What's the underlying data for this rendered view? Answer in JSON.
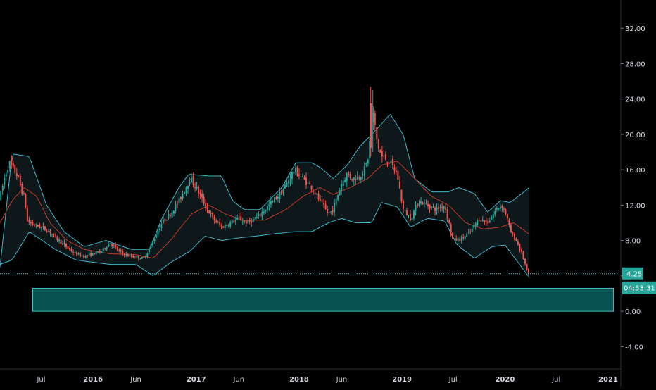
{
  "colors": {
    "background": "#000000",
    "up": "#26a69a",
    "down": "#ef5350",
    "band": "#3fb6c6",
    "basis": "#c0392b",
    "zone_fill": "#0c5f5f",
    "zone_border": "#3fc1c1",
    "price_line": "#3fc1c1",
    "price_tag_bg": "#26a69a",
    "axis_text": "#d1d4dc"
  },
  "price_tag": "4.25",
  "countdown": "04:53:31",
  "chart_data": {
    "type": "candlestick",
    "y_axis": {
      "ticks": [
        "-4.00",
        "0.00",
        "4.00",
        "8.00",
        "12.00",
        "16.00",
        "20.00",
        "24.00",
        "28.00",
        "32.00"
      ],
      "ylim": [
        -6.2,
        35.2
      ]
    },
    "x_axis": {
      "ticks": [
        "Jul",
        "2016",
        "Jun",
        "2017",
        "Jun",
        "2018",
        "Jun",
        "2019",
        "Jul",
        "2020",
        "Jul",
        "2021"
      ],
      "range": [
        "2015-02-05",
        "2021-02-15"
      ]
    },
    "overlays": [
      "bollinger_upper",
      "bollinger_basis",
      "bollinger_lower"
    ],
    "last_price": 4.25,
    "zone": {
      "x_start": "2015-06-01",
      "x_end": "2021-01-20",
      "y_low": 0.0,
      "y_high": 2.6
    },
    "price_path": [
      [
        "2015-02-05",
        12.8
      ],
      [
        "2015-02-20",
        15.0
      ],
      [
        "2015-03-10",
        16.8
      ],
      [
        "2015-03-25",
        16.0
      ],
      [
        "2015-04-10",
        15.2
      ],
      [
        "2015-04-20",
        14.0
      ],
      [
        "2015-05-05",
        12.5
      ],
      [
        "2015-05-12",
        10.2
      ],
      [
        "2015-06-01",
        9.8
      ],
      [
        "2015-07-01",
        9.5
      ],
      [
        "2015-08-01",
        9.0
      ],
      [
        "2015-09-01",
        8.0
      ],
      [
        "2015-10-01",
        7.2
      ],
      [
        "2015-11-01",
        6.5
      ],
      [
        "2015-12-01",
        6.2
      ],
      [
        "2016-01-01",
        6.5
      ],
      [
        "2016-02-01",
        6.8
      ],
      [
        "2016-03-01",
        7.8
      ],
      [
        "2016-04-01",
        6.8
      ],
      [
        "2016-05-01",
        6.3
      ],
      [
        "2016-06-01",
        6.1
      ],
      [
        "2016-07-01",
        6.0
      ],
      [
        "2016-08-01",
        8.0
      ],
      [
        "2016-09-01",
        10.0
      ],
      [
        "2016-10-01",
        11.0
      ],
      [
        "2016-11-01",
        12.5
      ],
      [
        "2016-12-10",
        15.0
      ],
      [
        "2017-01-01",
        14.0
      ],
      [
        "2017-02-01",
        12.0
      ],
      [
        "2017-03-01",
        10.5
      ],
      [
        "2017-04-01",
        9.5
      ],
      [
        "2017-05-01",
        10.0
      ],
      [
        "2017-06-01",
        10.5
      ],
      [
        "2017-07-01",
        10.0
      ],
      [
        "2017-08-01",
        10.5
      ],
      [
        "2017-09-01",
        11.5
      ],
      [
        "2017-10-01",
        12.5
      ],
      [
        "2017-11-01",
        13.5
      ],
      [
        "2017-12-15",
        16.0
      ],
      [
        "2018-01-15",
        15.0
      ],
      [
        "2018-02-15",
        14.0
      ],
      [
        "2018-03-15",
        12.5
      ],
      [
        "2018-04-15",
        11.0
      ],
      [
        "2018-05-01",
        11.5
      ],
      [
        "2018-06-01",
        14.5
      ],
      [
        "2018-06-20",
        15.5
      ],
      [
        "2018-07-10",
        15.0
      ],
      [
        "2018-08-01",
        15.2
      ],
      [
        "2018-08-20",
        16.0
      ],
      [
        "2018-09-01",
        17.0
      ],
      [
        "2018-09-20",
        22.5
      ],
      [
        "2018-10-05",
        19.0
      ],
      [
        "2018-10-20",
        17.5
      ],
      [
        "2018-11-15",
        17.0
      ],
      [
        "2018-12-15",
        15.5
      ],
      [
        "2019-01-05",
        11.5
      ],
      [
        "2019-02-01",
        10.5
      ],
      [
        "2019-03-01",
        12.5
      ],
      [
        "2019-04-01",
        12.0
      ],
      [
        "2019-05-01",
        11.5
      ],
      [
        "2019-06-01",
        12.0
      ],
      [
        "2019-07-01",
        8.0
      ],
      [
        "2019-08-01",
        8.2
      ],
      [
        "2019-09-01",
        9.0
      ],
      [
        "2019-10-01",
        10.5
      ],
      [
        "2019-11-01",
        10.0
      ],
      [
        "2019-12-01",
        11.5
      ],
      [
        "2019-12-20",
        12.0
      ],
      [
        "2020-01-05",
        11.0
      ],
      [
        "2020-01-20",
        9.0
      ],
      [
        "2020-02-10",
        8.0
      ],
      [
        "2020-03-01",
        6.5
      ],
      [
        "2020-03-20",
        4.5
      ],
      [
        "2020-03-28",
        4.25
      ]
    ],
    "upper_band_path": [
      [
        "2015-02-05",
        5.0
      ],
      [
        "2015-03-20",
        17.8
      ],
      [
        "2015-05-20",
        17.5
      ],
      [
        "2015-07-20",
        12.0
      ],
      [
        "2015-09-20",
        9.0
      ],
      [
        "2015-12-01",
        7.3
      ],
      [
        "2016-02-15",
        8.0
      ],
      [
        "2016-05-15",
        7.0
      ],
      [
        "2016-07-20",
        7.0
      ],
      [
        "2016-09-01",
        10.5
      ],
      [
        "2016-11-01",
        14.0
      ],
      [
        "2016-12-05",
        15.5
      ],
      [
        "2017-02-15",
        15.3
      ],
      [
        "2017-04-01",
        15.3
      ],
      [
        "2017-05-10",
        12.5
      ],
      [
        "2017-06-20",
        11.5
      ],
      [
        "2017-08-15",
        11.5
      ],
      [
        "2017-11-01",
        14.0
      ],
      [
        "2017-12-20",
        16.8
      ],
      [
        "2018-02-15",
        16.8
      ],
      [
        "2018-03-20",
        16.2
      ],
      [
        "2018-05-01",
        15.0
      ],
      [
        "2018-06-20",
        16.5
      ],
      [
        "2018-08-01",
        18.5
      ],
      [
        "2018-09-15",
        20.0
      ],
      [
        "2018-10-15",
        21.0
      ],
      [
        "2018-11-20",
        22.3
      ],
      [
        "2019-01-05",
        20.0
      ],
      [
        "2019-02-15",
        15.0
      ],
      [
        "2019-04-15",
        13.5
      ],
      [
        "2019-06-15",
        13.5
      ],
      [
        "2019-07-20",
        14.0
      ],
      [
        "2019-09-15",
        13.3
      ],
      [
        "2019-11-01",
        11.2
      ],
      [
        "2019-12-15",
        12.5
      ],
      [
        "2020-01-20",
        12.3
      ],
      [
        "2020-03-28",
        14.0
      ]
    ],
    "lower_band_path": [
      [
        "2015-02-05",
        5.3
      ],
      [
        "2015-03-20",
        5.8
      ],
      [
        "2015-05-20",
        9.0
      ],
      [
        "2015-08-20",
        7.0
      ],
      [
        "2015-11-01",
        5.8
      ],
      [
        "2016-03-01",
        5.3
      ],
      [
        "2016-06-01",
        5.3
      ],
      [
        "2016-08-01",
        4.0
      ],
      [
        "2016-10-01",
        5.5
      ],
      [
        "2016-12-10",
        6.8
      ],
      [
        "2017-02-01",
        8.5
      ],
      [
        "2017-04-01",
        8.0
      ],
      [
        "2017-06-01",
        8.3
      ],
      [
        "2017-08-01",
        8.5
      ],
      [
        "2017-10-15",
        8.8
      ],
      [
        "2017-12-20",
        9.0
      ],
      [
        "2018-02-15",
        9.0
      ],
      [
        "2018-04-15",
        10.0
      ],
      [
        "2018-06-01",
        10.5
      ],
      [
        "2018-07-20",
        10.0
      ],
      [
        "2018-09-15",
        10.0
      ],
      [
        "2018-10-20",
        12.3
      ],
      [
        "2018-12-15",
        11.8
      ],
      [
        "2019-02-01",
        9.5
      ],
      [
        "2019-04-01",
        10.5
      ],
      [
        "2019-06-01",
        10.2
      ],
      [
        "2019-07-15",
        7.5
      ],
      [
        "2019-09-15",
        6.0
      ],
      [
        "2019-11-15",
        7.3
      ],
      [
        "2020-01-01",
        7.5
      ],
      [
        "2020-03-28",
        3.8
      ]
    ],
    "basis_path": [
      [
        "2015-02-05",
        10.0
      ],
      [
        "2015-03-20",
        12.5
      ],
      [
        "2015-05-01",
        14.0
      ],
      [
        "2015-06-15",
        13.0
      ],
      [
        "2015-08-01",
        10.0
      ],
      [
        "2015-10-01",
        8.0
      ],
      [
        "2015-12-01",
        7.0
      ],
      [
        "2016-03-01",
        6.5
      ],
      [
        "2016-06-01",
        6.4
      ],
      [
        "2016-08-01",
        6.0
      ],
      [
        "2016-10-01",
        8.0
      ],
      [
        "2016-12-15",
        11.0
      ],
      [
        "2017-02-15",
        12.0
      ],
      [
        "2017-04-15",
        11.0
      ],
      [
        "2017-06-15",
        10.3
      ],
      [
        "2017-09-01",
        10.3
      ],
      [
        "2017-11-15",
        11.5
      ],
      [
        "2018-01-15",
        13.0
      ],
      [
        "2018-03-15",
        14.0
      ],
      [
        "2018-05-01",
        13.2
      ],
      [
        "2018-07-01",
        14.0
      ],
      [
        "2018-09-01",
        15.0
      ],
      [
        "2018-10-20",
        16.5
      ],
      [
        "2018-12-15",
        17.0
      ],
      [
        "2019-02-15",
        15.0
      ],
      [
        "2019-04-15",
        13.0
      ],
      [
        "2019-06-15",
        12.0
      ],
      [
        "2019-08-15",
        10.0
      ],
      [
        "2019-10-15",
        9.3
      ],
      [
        "2019-12-15",
        9.5
      ],
      [
        "2020-02-01",
        10.0
      ],
      [
        "2020-03-28",
        8.7
      ]
    ]
  }
}
